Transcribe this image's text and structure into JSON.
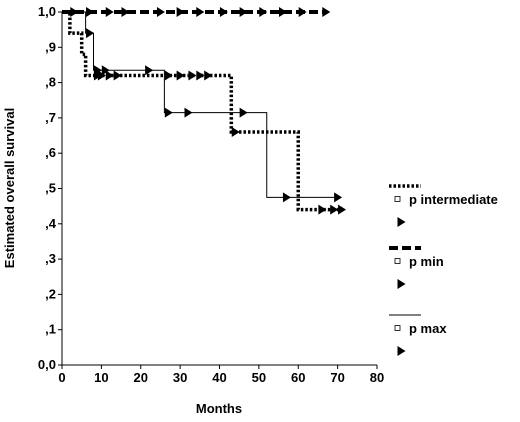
{
  "chart_data": {
    "type": "line",
    "title": "",
    "xlabel": "Months",
    "ylabel": "Estimated overall survival",
    "xlim": [
      0,
      80
    ],
    "ylim": [
      0,
      1
    ],
    "x_ticks": [
      0,
      10,
      20,
      30,
      40,
      50,
      60,
      70,
      80
    ],
    "x_tick_labels": [
      "0",
      "10",
      "20",
      "30",
      "40",
      "50",
      "60",
      "70",
      "80"
    ],
    "y_ticks": [
      0,
      0.1,
      0.2,
      0.3,
      0.4,
      0.5,
      0.6,
      0.7,
      0.8,
      0.9,
      1.0
    ],
    "y_tick_labels": [
      "0,0",
      ",1",
      ",2",
      ",3",
      ",4",
      ",5",
      ",6",
      ",7",
      ",8",
      ",9",
      "1,0"
    ],
    "grid": false,
    "legend_position": "right",
    "series": [
      {
        "name": "p intermediate",
        "style": "dotted",
        "steps": [
          [
            0,
            1.0
          ],
          [
            2,
            0.94
          ],
          [
            5,
            0.88
          ],
          [
            6,
            0.82
          ],
          [
            43,
            0.66
          ],
          [
            60,
            0.44
          ],
          [
            71,
            0.44
          ]
        ],
        "censored": [
          [
            9,
            0.82
          ],
          [
            10,
            0.82
          ],
          [
            12,
            0.82
          ],
          [
            14,
            0.82
          ],
          [
            27,
            0.82
          ],
          [
            30,
            0.82
          ],
          [
            33,
            0.82
          ],
          [
            35,
            0.82
          ],
          [
            37,
            0.82
          ],
          [
            44,
            0.66
          ],
          [
            66,
            0.44
          ],
          [
            69,
            0.44
          ],
          [
            71,
            0.44
          ]
        ]
      },
      {
        "name": "p min",
        "style": "dashed",
        "steps": [
          [
            0,
            1.0
          ],
          [
            67,
            1.0
          ]
        ],
        "censored": [
          [
            3,
            1.0
          ],
          [
            7,
            1.0
          ],
          [
            12,
            1.0
          ],
          [
            16,
            1.0
          ],
          [
            25,
            1.0
          ],
          [
            30,
            1.0
          ],
          [
            35,
            1.0
          ],
          [
            41,
            1.0
          ],
          [
            46,
            1.0
          ],
          [
            51,
            1.0
          ],
          [
            56,
            1.0
          ],
          [
            61,
            1.0
          ],
          [
            67,
            1.0
          ]
        ]
      },
      {
        "name": "p max",
        "style": "solid",
        "steps": [
          [
            0,
            1.0
          ],
          [
            6,
            0.94
          ],
          [
            8,
            0.835
          ],
          [
            26,
            0.715
          ],
          [
            52,
            0.475
          ],
          [
            70,
            0.475
          ]
        ],
        "censored": [
          [
            7,
            0.94
          ],
          [
            9,
            0.835
          ],
          [
            11,
            0.835
          ],
          [
            22,
            0.835
          ],
          [
            27,
            0.715
          ],
          [
            32,
            0.715
          ],
          [
            46,
            0.715
          ],
          [
            57,
            0.475
          ],
          [
            70,
            0.475
          ]
        ]
      }
    ]
  }
}
